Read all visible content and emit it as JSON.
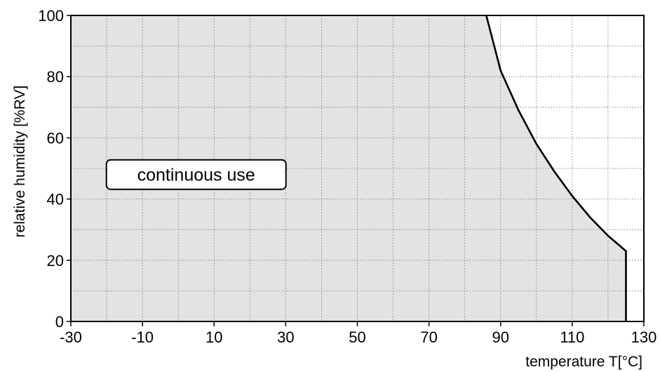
{
  "chart_data": {
    "type": "area",
    "title": "",
    "xlabel": "temperature T[°C]",
    "ylabel": "relative humidity [%RV]",
    "xlim": [
      -30,
      130
    ],
    "ylim": [
      0,
      100
    ],
    "x_ticks": [
      -30,
      -10,
      10,
      30,
      50,
      70,
      90,
      110,
      130
    ],
    "x_tick_labels": [
      "-30",
      "-10",
      "10",
      "30",
      "50",
      "70",
      "90",
      "110",
      "130"
    ],
    "y_ticks": [
      0,
      20,
      40,
      60,
      80,
      100
    ],
    "y_tick_labels": [
      "0",
      "20",
      "40",
      "60",
      "80",
      "100"
    ],
    "x_minor_step": 10,
    "y_minor_step": 10,
    "grid": true,
    "region_color": "#e3e3e3",
    "series": [
      {
        "boundary": [
          {
            "x": 86,
            "y": 100
          },
          {
            "x": 90,
            "y": 82
          },
          {
            "x": 95,
            "y": 69
          },
          {
            "x": 100,
            "y": 58
          },
          {
            "x": 105,
            "y": 49
          },
          {
            "x": 110,
            "y": 41
          },
          {
            "x": 115,
            "y": 34
          },
          {
            "x": 120,
            "y": 28
          },
          {
            "x": 125,
            "y": 23
          },
          {
            "x": 125,
            "y": 0
          }
        ]
      }
    ],
    "annotations": [
      {
        "text": "continuous use",
        "x": 5,
        "y": 48
      }
    ]
  }
}
